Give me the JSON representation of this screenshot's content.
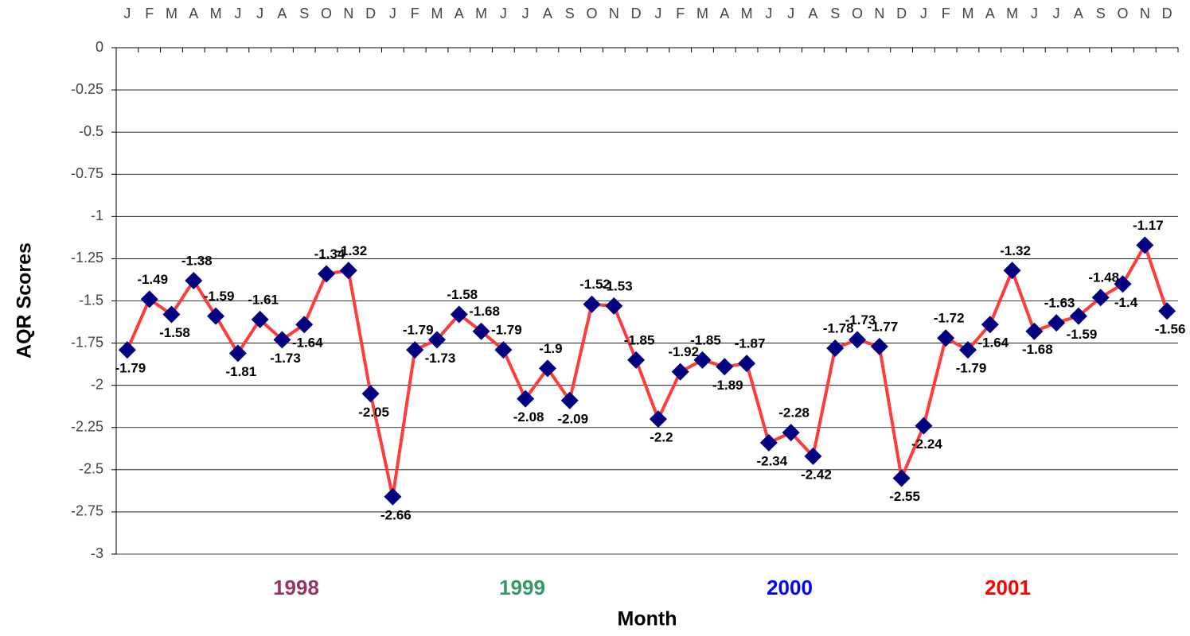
{
  "chart_data": {
    "type": "line",
    "x_label": "Month",
    "y_label": "AQR Scores",
    "categories": [
      "J",
      "F",
      "M",
      "A",
      "M",
      "J",
      "J",
      "A",
      "S",
      "O",
      "N",
      "D",
      "J",
      "F",
      "M",
      "A",
      "M",
      "J",
      "J",
      "A",
      "S",
      "O",
      "N",
      "D",
      "J",
      "F",
      "M",
      "A",
      "M",
      "J",
      "J",
      "A",
      "S",
      "O",
      "N",
      "D",
      "J",
      "F",
      "M",
      "A",
      "M",
      "J",
      "J",
      "A",
      "S",
      "O",
      "N",
      "D"
    ],
    "series": [
      {
        "name": "AQR Scores",
        "color": "#ff3b3b",
        "marker_color": "#000080",
        "values": [
          -1.79,
          -1.49,
          -1.58,
          -1.38,
          -1.59,
          -1.81,
          -1.61,
          -1.73,
          -1.64,
          -1.34,
          -1.32,
          -2.05,
          -2.66,
          -1.79,
          -1.73,
          -1.58,
          -1.68,
          -1.79,
          -2.08,
          -1.9,
          -2.09,
          -1.52,
          -1.53,
          -1.85,
          -2.2,
          -1.92,
          -1.85,
          -1.89,
          -1.87,
          -2.34,
          -2.28,
          -2.42,
          -1.78,
          -1.73,
          -1.77,
          -2.55,
          -2.24,
          -1.72,
          -1.79,
          -1.64,
          -1.32,
          -1.68,
          -1.63,
          -1.59,
          -1.48,
          -1.4,
          -1.17,
          -1.56
        ]
      }
    ],
    "year_labels": [
      {
        "text": "1998",
        "color": "#993366"
      },
      {
        "text": "1999",
        "color": "#339966"
      },
      {
        "text": "2000",
        "color": "#0000ff"
      },
      {
        "text": "2001",
        "color": "#ff0000"
      }
    ],
    "ylim": [
      -3,
      0
    ],
    "yticks": [
      0,
      -0.25,
      -0.5,
      -0.75,
      -1,
      -1.25,
      -1.5,
      -1.75,
      -2,
      -2.25,
      -2.5,
      -2.75,
      -3
    ],
    "grid": true
  }
}
